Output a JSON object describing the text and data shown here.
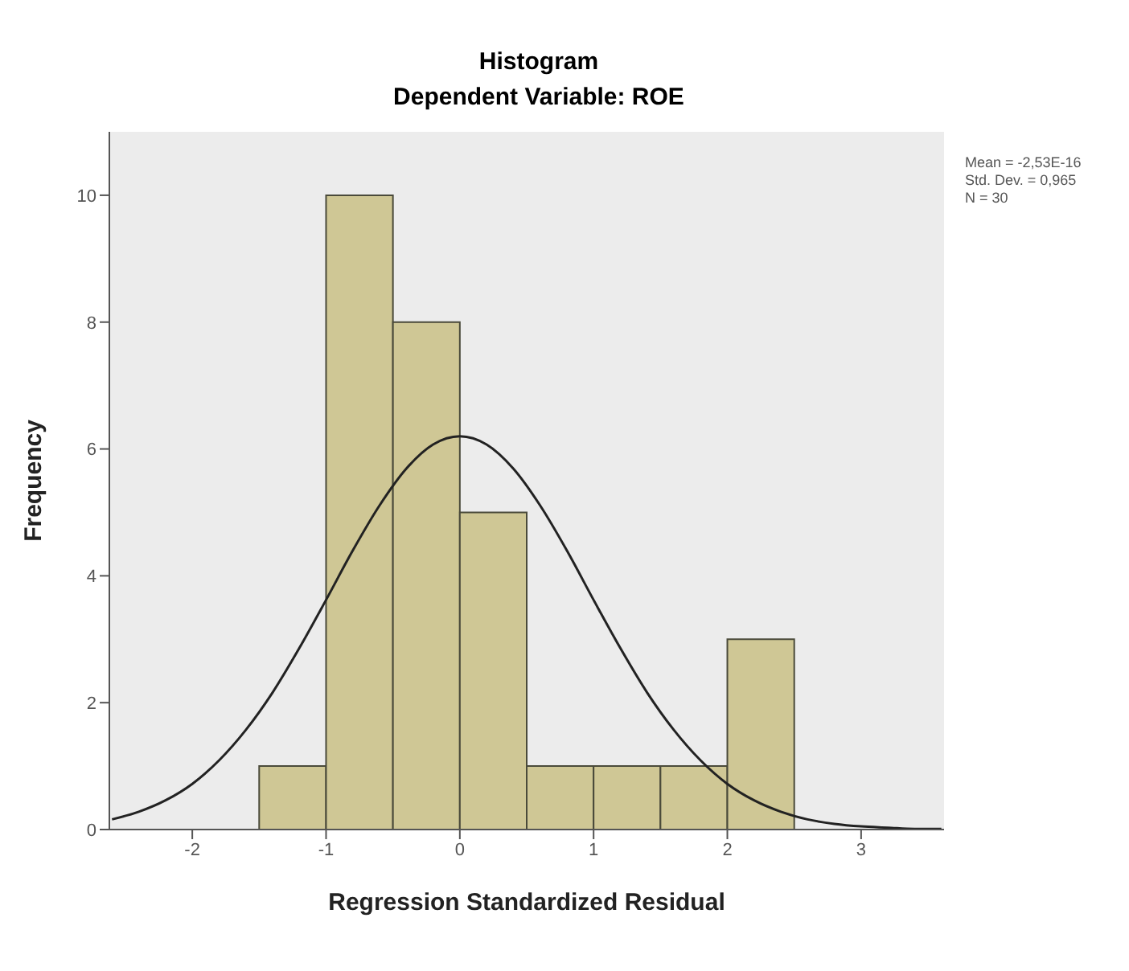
{
  "chart_data": {
    "type": "histogram",
    "title": "Histogram",
    "subtitle": "Dependent Variable: ROE",
    "xlabel": "Regression Standardized Residual",
    "ylabel": "Frequency",
    "bins": [
      -1.5,
      -1,
      -0.5,
      0,
      0.5,
      1,
      1.5,
      2,
      2.5
    ],
    "values": [
      1,
      10,
      8,
      5,
      1,
      1,
      1,
      3
    ],
    "color": "#cfc795",
    "series": [
      {
        "type": "line",
        "color": "#222222",
        "x": [
          -2.6,
          -2.4,
          -2.2,
          -2,
          -1.8,
          -1.6,
          -1.4,
          -1.2,
          -1,
          -0.8,
          -0.6,
          -0.4,
          -0.2,
          0,
          0.2,
          0.4,
          0.6,
          0.8,
          1,
          1.2,
          1.4,
          1.6,
          1.8,
          2,
          2.2,
          2.4,
          2.6,
          2.8,
          3,
          3.2,
          3.4,
          3.6
        ],
        "values": [
          0.16,
          0.28,
          0.46,
          0.72,
          1.09,
          1.57,
          2.16,
          2.86,
          3.62,
          4.4,
          5.11,
          5.69,
          6.07,
          6.2,
          6.07,
          5.69,
          5.11,
          4.4,
          3.62,
          2.86,
          2.16,
          1.57,
          1.09,
          0.72,
          0.46,
          0.28,
          0.16,
          0.09,
          0.05,
          0.03,
          0.01,
          0.01
        ]
      }
    ],
    "xlim": [
      -2.62,
      3.62
    ],
    "xticks": [
      -2,
      -1,
      0,
      1,
      2,
      3
    ],
    "ylim": [
      0,
      11
    ],
    "yticks": [
      0,
      2,
      4,
      6,
      8,
      10
    ],
    "grid": false,
    "legend": false,
    "marker": "none",
    "line_style": "solid",
    "annotations": [
      "Mean = -2,53E-16",
      "Std. Dev. = 0,965",
      "N = 30"
    ]
  }
}
